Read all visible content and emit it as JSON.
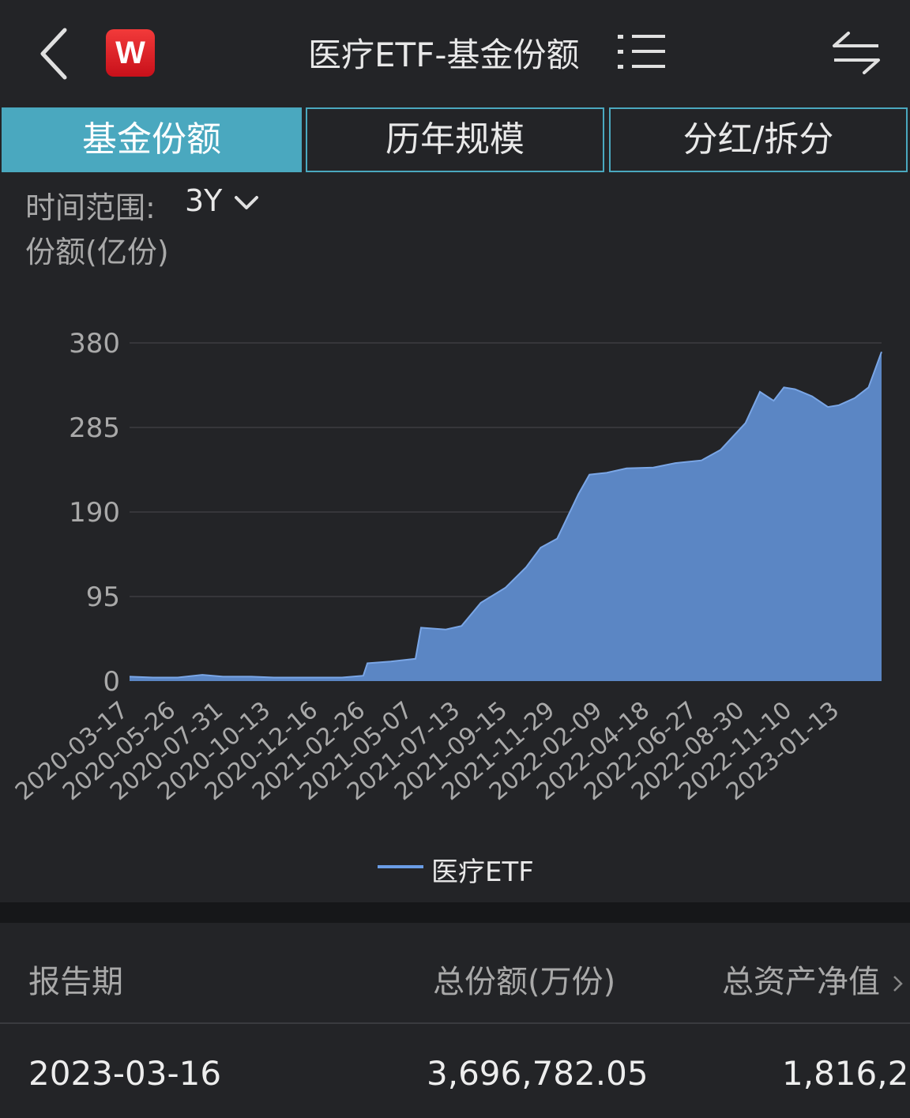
{
  "header": {
    "title": "医疗ETF-基金份额",
    "logo_text": "W"
  },
  "tabs": [
    {
      "label": "基金份额",
      "active": true
    },
    {
      "label": "历年规模",
      "active": false
    },
    {
      "label": "分红/拆分",
      "active": false
    }
  ],
  "filter": {
    "range_label": "时间范围:",
    "range_value": "3Y"
  },
  "chart_data": {
    "type": "area",
    "ylabel": "份额(亿份)",
    "ylim": [
      0,
      380
    ],
    "yticks": [
      "380",
      "285",
      "190",
      "95",
      "0"
    ],
    "xticks": [
      "2020-03-17",
      "2020-05-26",
      "2020-07-31",
      "2020-10-13",
      "2020-12-16",
      "2021-02-26",
      "2021-05-07",
      "2021-07-13",
      "2021-09-15",
      "2021-11-29",
      "2022-02-09",
      "2022-04-18",
      "2022-06-27",
      "2022-08-30",
      "2022-11-10",
      "2023-01-13"
    ],
    "grid": true,
    "legend_position": "bottom",
    "series": [
      {
        "name": "医疗ETF",
        "color": "#5b86c4",
        "x": [
          "2020-03-17",
          "2020-04-20",
          "2020-05-26",
          "2020-07-01",
          "2020-07-31",
          "2020-09-10",
          "2020-10-13",
          "2020-11-15",
          "2020-12-16",
          "2021-01-20",
          "2021-02-20",
          "2021-02-26",
          "2021-04-01",
          "2021-05-07",
          "2021-05-15",
          "2021-06-20",
          "2021-07-13",
          "2021-08-10",
          "2021-09-15",
          "2021-10-15",
          "2021-11-05",
          "2021-11-29",
          "2021-12-30",
          "2022-01-15",
          "2022-02-09",
          "2022-03-10",
          "2022-04-18",
          "2022-05-20",
          "2022-06-27",
          "2022-07-25",
          "2022-08-30",
          "2022-09-20",
          "2022-10-10",
          "2022-10-25",
          "2022-11-10",
          "2022-12-05",
          "2022-12-28",
          "2023-01-13",
          "2023-02-05",
          "2023-02-25",
          "2023-03-16"
        ],
        "values": [
          5,
          4,
          4,
          7,
          5,
          5,
          4,
          4,
          4,
          4,
          6,
          20,
          22,
          25,
          60,
          58,
          62,
          88,
          105,
          128,
          150,
          160,
          210,
          232,
          234,
          239,
          240,
          245,
          248,
          260,
          290,
          325,
          315,
          330,
          328,
          320,
          308,
          310,
          318,
          330,
          370
        ]
      }
    ]
  },
  "legend": {
    "label": "医疗ETF"
  },
  "table": {
    "headers": [
      "报告期",
      "总份额(万份)",
      "总资产净值"
    ],
    "rows": [
      [
        "2023-03-16",
        "3,696,782.05",
        "1,816,2"
      ]
    ]
  }
}
